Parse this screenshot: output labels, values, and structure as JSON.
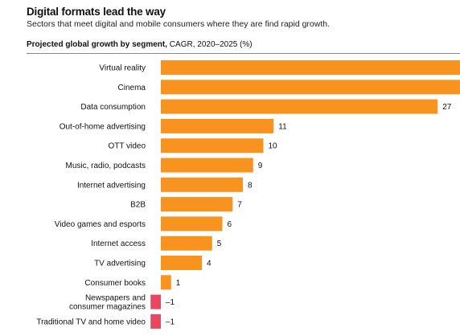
{
  "header": {
    "title": "Digital formats lead the way",
    "subtitle": "Sectors that meet digital and mobile consumers where they are find rapid growth.",
    "caption_bold": "Projected global growth by segment,",
    "caption_rest": " CAGR, 2020–2025 (%)"
  },
  "colors": {
    "positive": "#F7931E",
    "negative": "#E8475F"
  },
  "chart_data": {
    "type": "bar",
    "orientation": "horizontal",
    "title": "Projected global growth by segment, CAGR, 2020–2025 (%)",
    "xlabel": "",
    "ylabel": "",
    "xlim": [
      -1,
      30
    ],
    "categories": [
      "Virtual reality",
      "Cinema",
      "Data consumption",
      "Out-of-home advertising",
      "OTT video",
      "Music, radio, podcasts",
      "Internet advertising",
      "B2B",
      "Video games and esports",
      "Internet access",
      "TV advertising",
      "Consumer books",
      "Newspapers and consumer magazines",
      "Traditional TV and home video"
    ],
    "category_lines": [
      [
        "Virtual reality"
      ],
      [
        "Cinema"
      ],
      [
        "Data consumption"
      ],
      [
        "Out-of-home advertising"
      ],
      [
        "OTT video"
      ],
      [
        "Music, radio, podcasts"
      ],
      [
        "Internet advertising"
      ],
      [
        "B2B"
      ],
      [
        "Video games and esports"
      ],
      [
        "Internet access"
      ],
      [
        "TV advertising"
      ],
      [
        "Consumer books"
      ],
      [
        "Newspapers and",
        "consumer magazines"
      ],
      [
        "Traditional TV and home video"
      ]
    ],
    "values": [
      30,
      30,
      27,
      11,
      10,
      9,
      8,
      7,
      6,
      5,
      4,
      1,
      -1,
      -1
    ],
    "value_labels": [
      "",
      "",
      "27",
      "11",
      "10",
      "9",
      "8",
      "7",
      "6",
      "5",
      "4",
      "1",
      "–1",
      "–1"
    ]
  }
}
